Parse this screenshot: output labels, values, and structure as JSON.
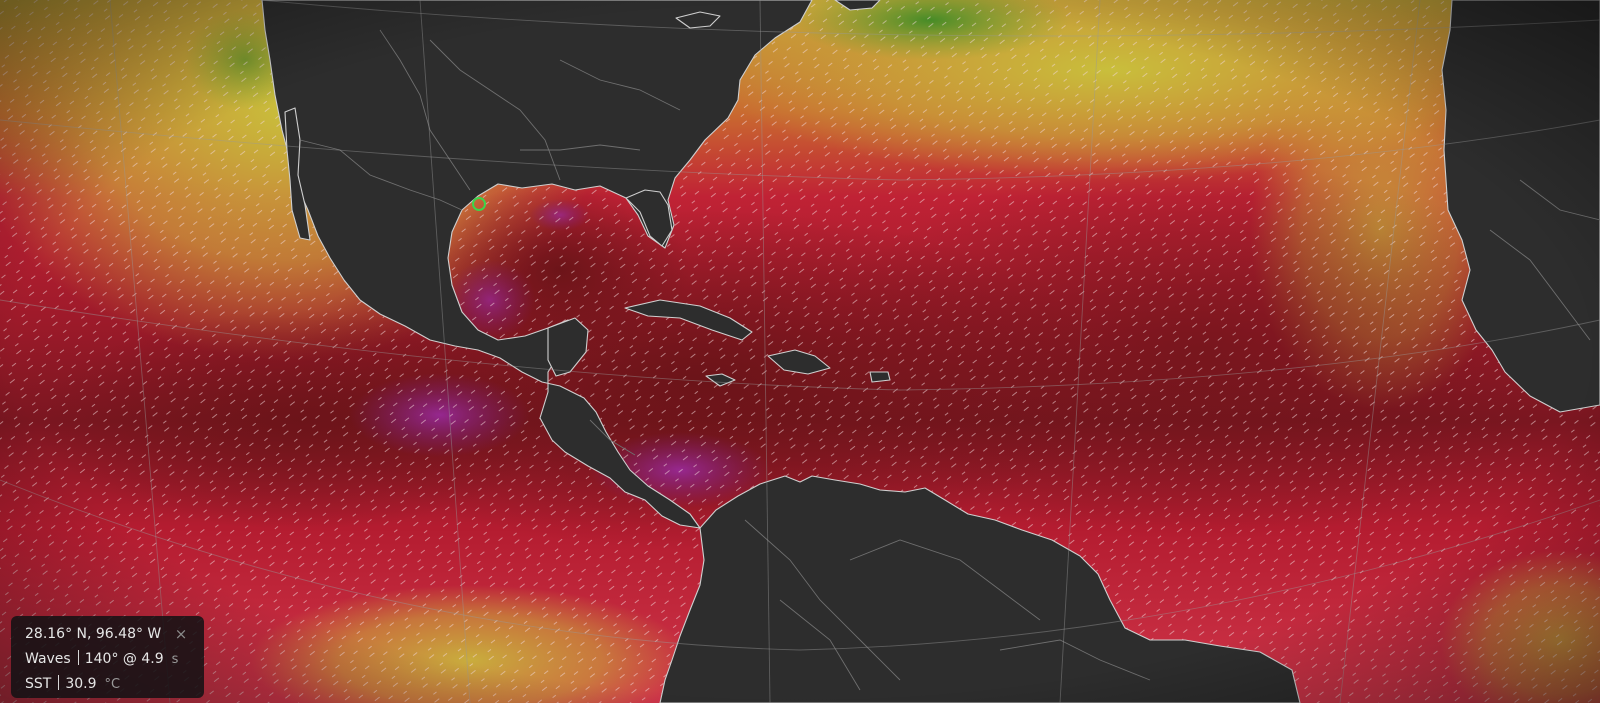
{
  "info_panel": {
    "coordinates": "28.16° N, 96.48° W",
    "close_glyph": "×",
    "waves_label": "Waves",
    "waves_value": "140° @ 4.9",
    "waves_unit": "s",
    "sst_label": "SST",
    "sst_value": "30.9",
    "sst_unit": "°C"
  },
  "map": {
    "layer": "sea-surface-temperature",
    "overlay": "wave-direction-particles",
    "colors": {
      "land": "#2d2d2d",
      "coastline": "#d0d0d0",
      "graticule": "#5a5a5a",
      "sst_purple": "#8a2a8c",
      "sst_maroon": "#5e1518",
      "sst_red": "#b8192b",
      "sst_pink": "#d23148",
      "sst_orange": "#c66c30",
      "sst_yellow": "#c3b13a",
      "sst_green": "#58922c",
      "marker": "#3cd64a"
    }
  }
}
